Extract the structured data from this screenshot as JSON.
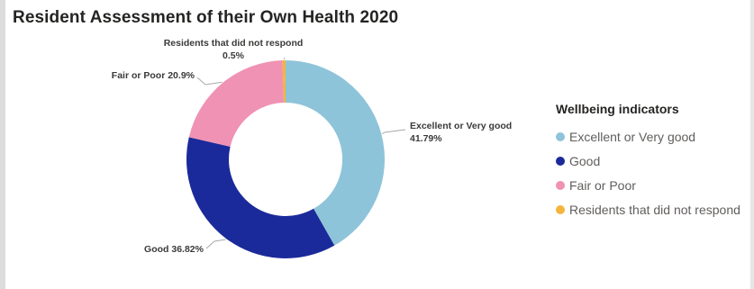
{
  "title": "Resident Assessment of their Own Health 2020",
  "legend": {
    "title": "Wellbeing indicators",
    "items": [
      {
        "label": "Excellent or Very good",
        "color": "#8ec4d9"
      },
      {
        "label": "Good",
        "color": "#1b2a9a"
      },
      {
        "label": "Fair or Poor",
        "color": "#f092b4"
      },
      {
        "label": "Residents that did not respond",
        "color": "#f5b43c"
      }
    ]
  },
  "chart_data": {
    "type": "pie",
    "title": "Resident Assessment of their Own Health 2020",
    "donut": true,
    "legend_position": "right",
    "categories": [
      "Excellent or Very good",
      "Good",
      "Fair or Poor",
      "Residents that did not respond"
    ],
    "values": [
      41.79,
      36.82,
      20.9,
      0.5
    ],
    "colors": [
      "#8ec4d9",
      "#1b2a9a",
      "#f092b4",
      "#f5b43c"
    ],
    "data_labels": [
      [
        "Excellent or Very good",
        "41.79%"
      ],
      [
        "Good 36.82%"
      ],
      [
        "Fair or Poor 20.9%"
      ],
      [
        "Residents that did not respond",
        "0.5%"
      ]
    ]
  }
}
